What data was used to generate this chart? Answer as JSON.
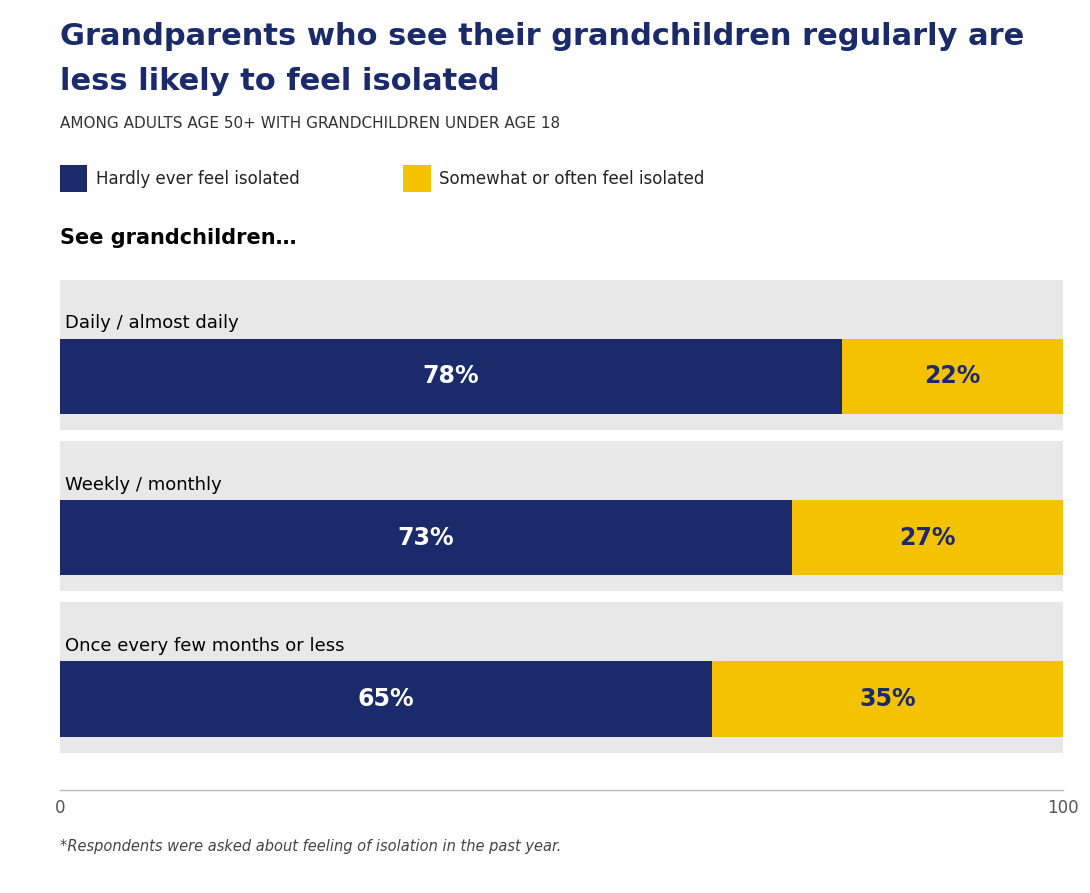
{
  "title_line1": "Grandparents who see their grandchildren regularly are",
  "title_line2": "less likely to feel isolated",
  "subtitle": "AMONG ADULTS AGE 50+ WITH GRANDCHILDREN UNDER AGE 18",
  "section_label": "See grandchildren…",
  "categories": [
    "Daily / almost daily",
    "Weekly / monthly",
    "Once every few months or less"
  ],
  "hardly_ever": [
    78,
    73,
    65
  ],
  "somewhat_often": [
    22,
    27,
    35
  ],
  "color_dark": "#1B2A6B",
  "color_yellow": "#F5C200",
  "color_bg_bar": "#E8E8E8",
  "legend_label_dark": "Hardly ever feel isolated",
  "legend_label_yellow": "Somewhat or often feel isolated",
  "footnote": "*Respondents were asked about feeling of isolation in the past year.",
  "background_color": "#FFFFFF",
  "text_color_title": "#1B2A6B",
  "axis_label_color": "#555555",
  "bar_label_fontsize": 17,
  "category_fontsize": 13,
  "legend_fontsize": 12,
  "title_fontsize": 22,
  "subtitle_fontsize": 11,
  "section_fontsize": 15,
  "footnote_fontsize": 10.5
}
